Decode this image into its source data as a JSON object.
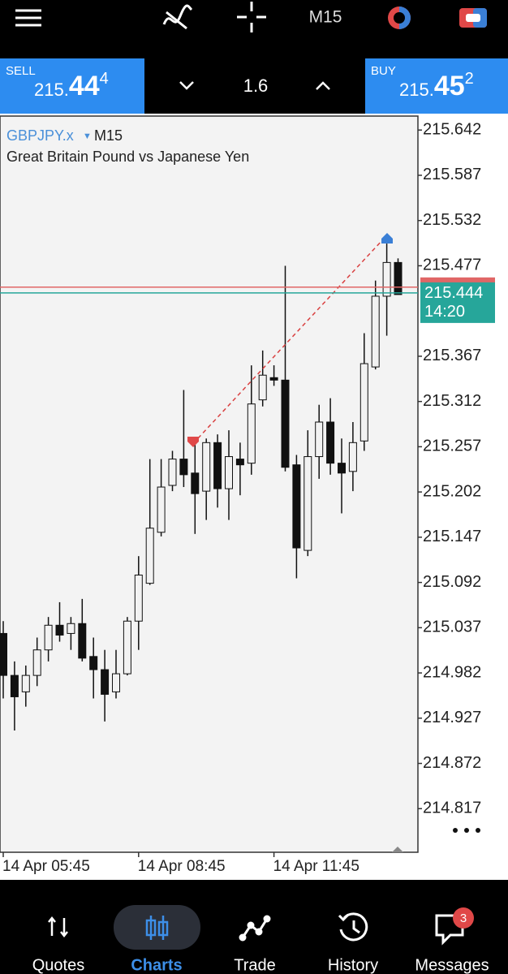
{
  "toolbar": {
    "timeframe": "M15"
  },
  "quote_bar": {
    "sell": {
      "label": "SELL",
      "price_prefix": "215.",
      "price_main": "44",
      "price_sup": "4"
    },
    "spread": 1.6,
    "buy": {
      "label": "BUY",
      "price_prefix": "215.",
      "price_main": "45",
      "price_sup": "2"
    }
  },
  "chart_data": {
    "type": "candlestick",
    "symbol": "GBPJPY.x",
    "timeframe": "M15",
    "subtitle": "Great Britain Pound vs Japanese Yen",
    "categories": [
      "14 Apr 05:45",
      null,
      null,
      null,
      null,
      null,
      null,
      null,
      null,
      null,
      null,
      null,
      "14 Apr 08:45",
      null,
      null,
      null,
      null,
      null,
      null,
      null,
      null,
      null,
      null,
      null,
      "14 Apr 11:45",
      null,
      null,
      null,
      null,
      null,
      null,
      null,
      null,
      null,
      null,
      null
    ],
    "open": [
      215.03,
      214.979,
      214.959,
      214.979,
      215.01,
      215.04,
      215.03,
      215.042,
      215.002,
      214.986,
      214.959,
      214.981,
      215.045,
      215.091,
      215.153,
      215.21,
      215.242,
      215.225,
      215.203,
      215.262,
      215.206,
      215.242,
      215.237,
      215.314,
      215.341,
      215.338,
      215.235,
      215.131,
      215.245,
      215.287,
      215.237,
      215.227,
      215.264,
      215.354,
      215.44,
      215.481
    ],
    "high": [
      215.045,
      214.996,
      214.991,
      215.025,
      215.05,
      215.068,
      215.05,
      215.072,
      215.025,
      215.01,
      215.01,
      215.05,
      215.124,
      215.242,
      215.242,
      215.252,
      215.326,
      215.262,
      215.267,
      215.272,
      215.277,
      215.262,
      215.356,
      215.374,
      215.356,
      215.477,
      215.247,
      215.277,
      215.308,
      215.316,
      215.267,
      215.287,
      215.395,
      215.459,
      215.504,
      215.486
    ],
    "low": [
      214.951,
      214.912,
      214.941,
      214.966,
      214.996,
      215.02,
      215.01,
      214.996,
      214.951,
      214.923,
      214.951,
      214.979,
      215.01,
      215.089,
      215.148,
      215.203,
      215.208,
      215.151,
      215.168,
      215.183,
      215.168,
      215.198,
      215.223,
      215.306,
      215.331,
      215.227,
      215.097,
      215.124,
      215.218,
      215.223,
      215.176,
      215.203,
      215.252,
      215.351,
      215.392,
      215.442
    ],
    "close": [
      214.979,
      214.953,
      214.979,
      215.01,
      215.04,
      215.028,
      215.042,
      215.0,
      214.986,
      214.956,
      214.981,
      215.045,
      215.101,
      215.158,
      215.208,
      215.242,
      215.223,
      215.2,
      215.262,
      215.206,
      215.245,
      215.235,
      215.309,
      215.344,
      215.338,
      215.232,
      215.134,
      215.245,
      215.287,
      215.237,
      215.225,
      215.262,
      215.358,
      215.44,
      215.481,
      215.442
    ],
    "up_color": "#f2f2f2",
    "down_color": "#111111",
    "ylim": [
      214.764,
      215.659
    ],
    "yticks": [
      215.642,
      215.587,
      215.532,
      215.477,
      215.367,
      215.312,
      215.257,
      215.202,
      215.147,
      215.092,
      215.037,
      214.982,
      214.927,
      214.872,
      214.817
    ],
    "price_lines": [
      {
        "value": 215.451,
        "color": "#e06666"
      },
      {
        "value": 215.444,
        "color": "#26a69a",
        "countdown": "14:20"
      }
    ]
  },
  "nav": {
    "items": [
      {
        "label": "Quotes"
      },
      {
        "label": "Charts"
      },
      {
        "label": "Trade"
      },
      {
        "label": "History"
      },
      {
        "label": "Messages",
        "badge": 3
      }
    ]
  }
}
